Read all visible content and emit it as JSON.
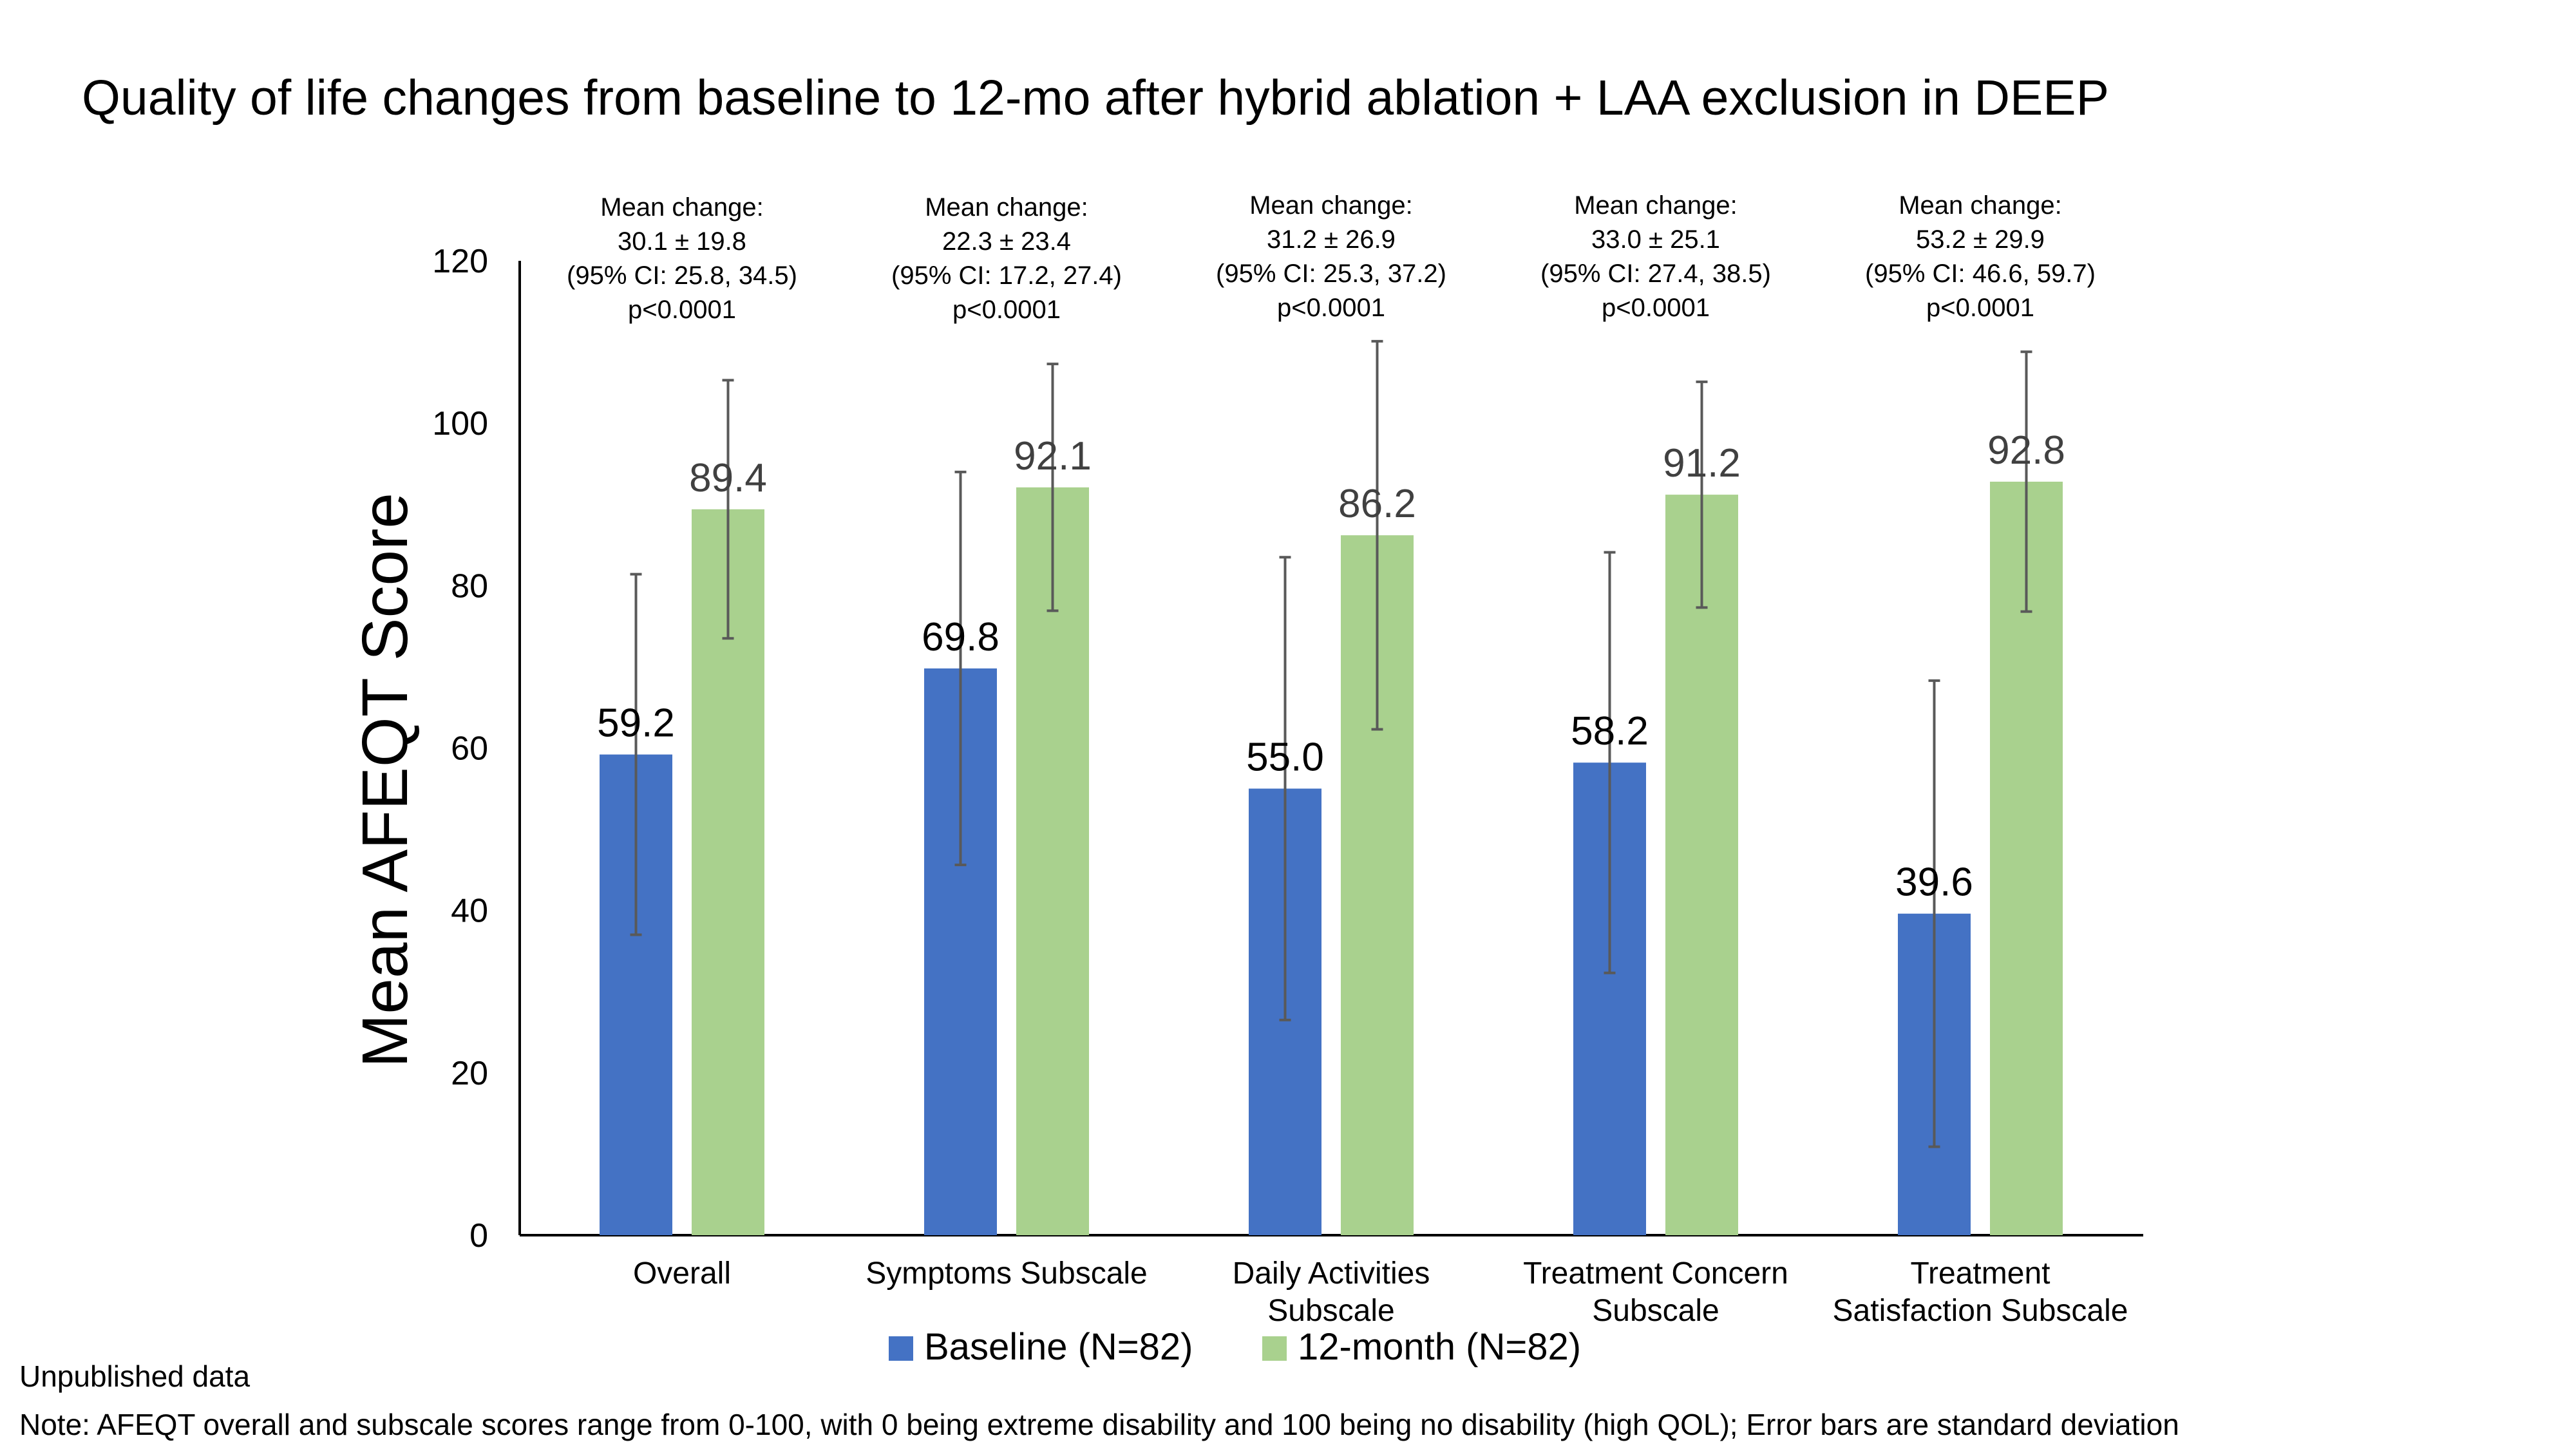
{
  "title": "Quality of life changes from baseline to 12-mo after hybrid ablation + LAA exclusion in DEEP",
  "footnotes": {
    "unpublished": "Unpublished data",
    "note": "Note: AFEQT overall and subscale scores range from 0-100, with 0 being extreme disability and 100 being no disability (high QOL); Error bars are standard deviation"
  },
  "colors": {
    "baseline": "#4472C4",
    "month12": "#A9D18E",
    "error_bar": "#595959",
    "axis": "#000000",
    "value_label_12m": "#404040"
  },
  "chart_data": {
    "type": "bar",
    "title": "Quality of life changes from baseline to 12-mo after hybrid ablation + LAA exclusion in DEEP",
    "xlabel": "",
    "ylabel": "Mean AFEQT Score",
    "ylim": [
      0,
      120
    ],
    "yticks": [
      0,
      20,
      40,
      60,
      80,
      100,
      120
    ],
    "grid": false,
    "legend_position": "bottom",
    "categories": [
      [
        "Overall"
      ],
      [
        "Symptoms Subscale"
      ],
      [
        "Daily Activities",
        "Subscale"
      ],
      [
        "Treatment Concern",
        "Subscale"
      ],
      [
        "Treatment",
        "Satisfaction Subscale"
      ]
    ],
    "series": [
      {
        "name": "Baseline (N=82)",
        "values": [
          59.2,
          69.8,
          55.0,
          58.2,
          39.6
        ],
        "labels": [
          "59.2",
          "69.8",
          "55.0",
          "58.2",
          "39.6"
        ],
        "error_sd": [
          22.2,
          24.2,
          28.5,
          25.9,
          28.7
        ]
      },
      {
        "name": "12-month (N=82)",
        "values": [
          89.4,
          92.1,
          86.2,
          91.2,
          92.8
        ],
        "labels": [
          "89.4",
          "92.1",
          "86.2",
          "91.2",
          "92.8"
        ],
        "error_sd": [
          15.9,
          15.2,
          23.9,
          13.9,
          16.0
        ]
      }
    ],
    "annotations": [
      [
        "Mean change:",
        "30.1 ± 19.8",
        "(95% CI: 25.8, 34.5)",
        "p<0.0001"
      ],
      [
        "Mean change:",
        "22.3 ± 23.4",
        "(95% CI: 17.2, 27.4)",
        "p<0.0001"
      ],
      [
        "Mean change:",
        "31.2 ± 26.9",
        "(95% CI: 25.3, 37.2)",
        "p<0.0001"
      ],
      [
        "Mean change:",
        "33.0 ± 25.1",
        "(95% CI: 27.4, 38.5)",
        "p<0.0001"
      ],
      [
        "Mean change:",
        "53.2 ± 29.9",
        "(95% CI: 46.6, 59.7)",
        "p<0.0001"
      ]
    ]
  }
}
